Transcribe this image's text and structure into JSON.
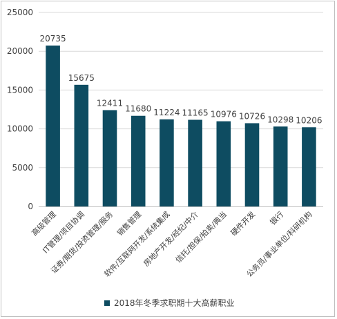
{
  "chart_data": {
    "type": "bar",
    "title": "",
    "xlabel": "",
    "ylabel": "",
    "ylim": [
      0,
      25000
    ],
    "yticks": [
      0,
      5000,
      10000,
      15000,
      20000,
      25000
    ],
    "grid": true,
    "legend_position": "bottom",
    "categories": [
      "高级管理",
      "IT管理/项目协调",
      "证券/期货/投资管理/服务",
      "销售管理",
      "软件/互联网开发/系统集成",
      "房地产开发/经纪/中介",
      "信托/担保/拍卖/典当",
      "硬件开发",
      "银行",
      "公务员/事业单位/科研机构"
    ],
    "series": [
      {
        "name": "2018年冬季求职期十大高薪职业",
        "color": "#0e4c61",
        "values": [
          20735,
          15675,
          12411,
          11680,
          11224,
          11165,
          10976,
          10726,
          10298,
          10206
        ]
      }
    ]
  }
}
